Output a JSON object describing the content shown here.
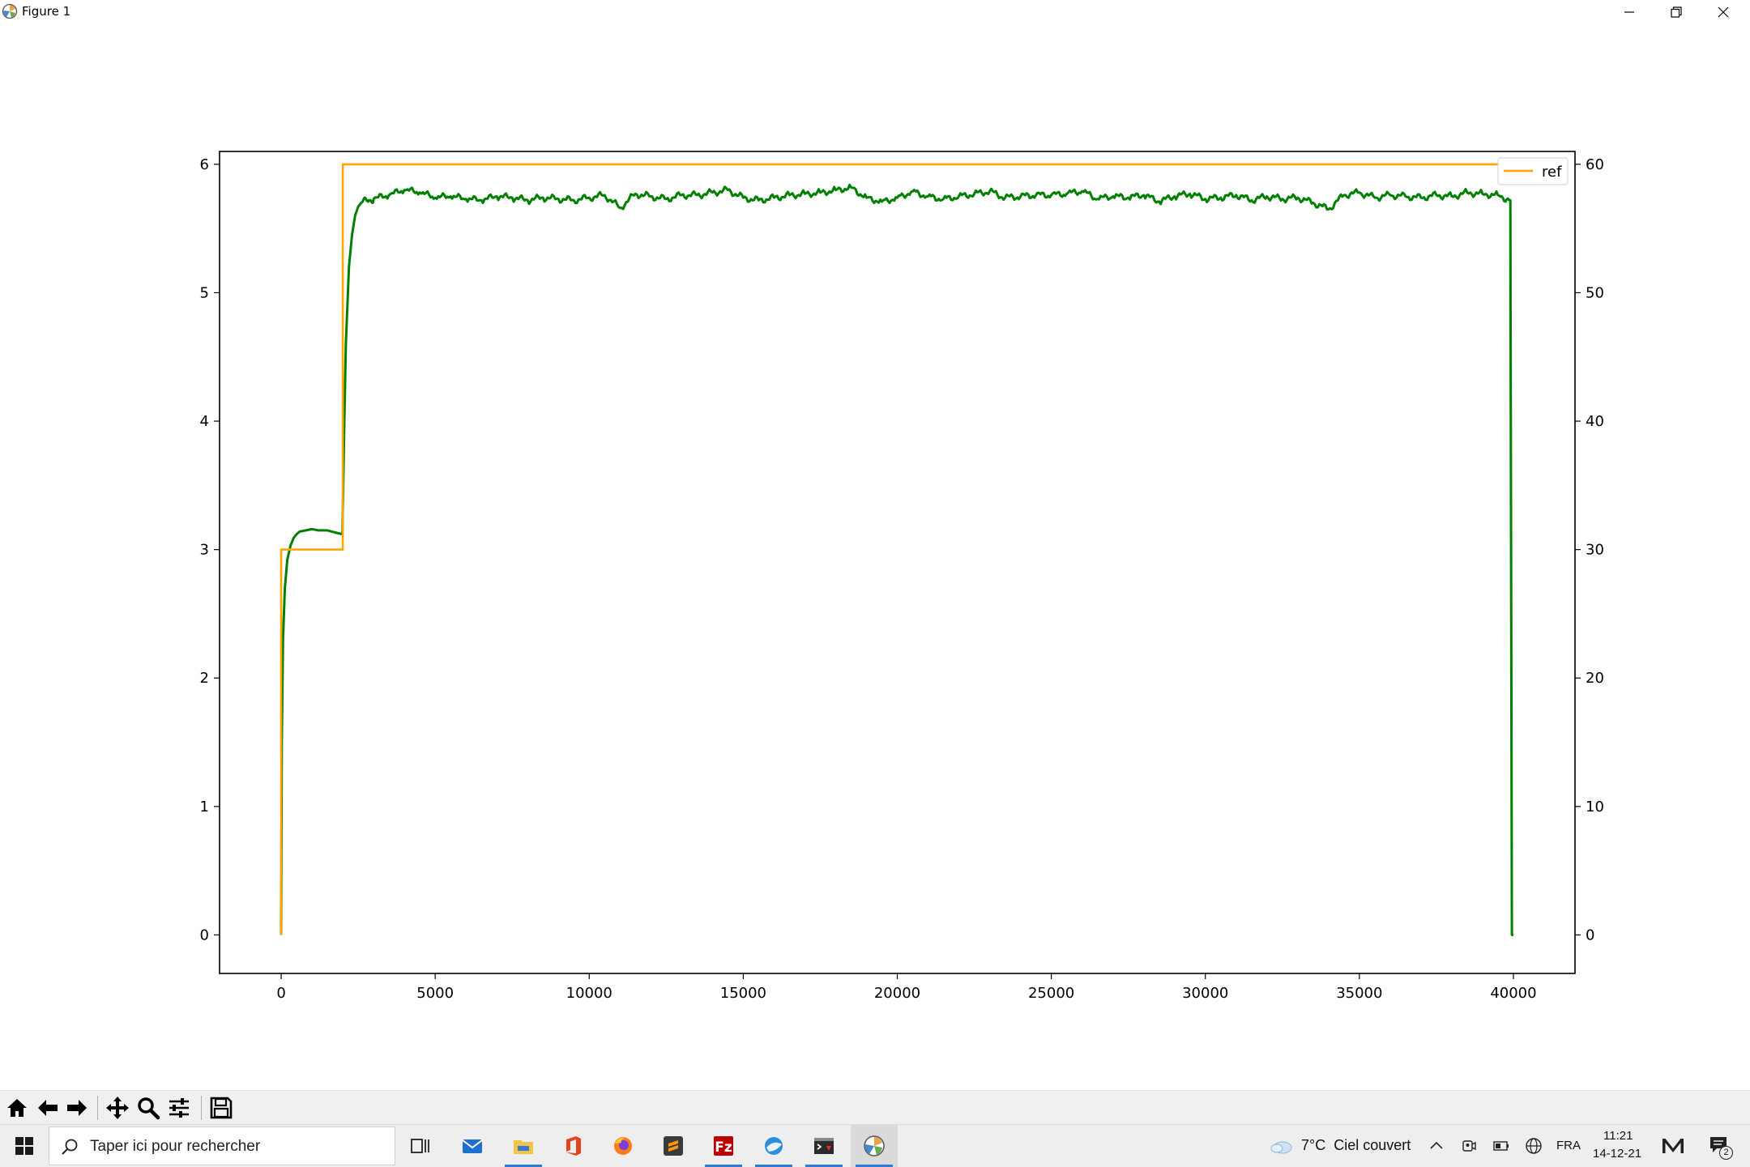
{
  "window": {
    "title": "Figure 1",
    "controls": [
      "minimize",
      "restore",
      "close"
    ]
  },
  "chart_data": {
    "type": "line",
    "title": "",
    "xlabel": "",
    "ylabel": "",
    "xlim": [
      -2000,
      42000
    ],
    "ylim": [
      -0.3,
      6.1
    ],
    "y2lim": [
      -3,
      61
    ],
    "x_ticks": [
      0,
      5000,
      10000,
      15000,
      20000,
      25000,
      30000,
      35000,
      40000
    ],
    "y_ticks": [
      0,
      1,
      2,
      3,
      4,
      5,
      6
    ],
    "y2_ticks": [
      0,
      10,
      20,
      30,
      40,
      50,
      60
    ],
    "grid": false,
    "legend": {
      "position": "top-right",
      "entries": [
        "ref"
      ]
    },
    "series": [
      {
        "name": "ref",
        "axis": "y2",
        "color": "#ffa500",
        "x": [
          0,
          0,
          2000,
          2000,
          40000
        ],
        "y": [
          0,
          30,
          30,
          60,
          60
        ]
      },
      {
        "axis": "y",
        "color": "#008000",
        "x": [
          0,
          20,
          60,
          120,
          200,
          300,
          400,
          500,
          600,
          800,
          1000,
          1200,
          1500,
          1800,
          1990,
          2000,
          2050,
          2100,
          2200,
          2300,
          2400,
          2500,
          2600,
          2800,
          3000,
          3500,
          4000,
          4500,
          5000,
          5500,
          6000,
          6500,
          7000,
          7500,
          8000,
          8500,
          9000,
          9500,
          10000,
          10500,
          11000,
          11500,
          12000,
          12500,
          13000,
          13500,
          14000,
          14500,
          15000,
          15500,
          16000,
          16500,
          17000,
          17500,
          18000,
          18500,
          19000,
          19500,
          20000,
          20500,
          21000,
          21500,
          22000,
          22500,
          23000,
          23500,
          24000,
          24500,
          25000,
          25500,
          26000,
          26500,
          27000,
          27500,
          28000,
          28500,
          29000,
          29500,
          30000,
          30500,
          31000,
          31500,
          32000,
          32500,
          33000,
          33500,
          34000,
          34500,
          35000,
          35500,
          36000,
          36500,
          37000,
          37500,
          38000,
          38500,
          39000,
          39500,
          39900,
          39950,
          40000
        ],
        "y": [
          0,
          1.5,
          2.3,
          2.7,
          2.92,
          3.03,
          3.09,
          3.12,
          3.14,
          3.15,
          3.16,
          3.15,
          3.15,
          3.13,
          3.12,
          3.3,
          4.0,
          4.6,
          5.2,
          5.45,
          5.6,
          5.67,
          5.7,
          5.72,
          5.73,
          5.76,
          5.8,
          5.78,
          5.74,
          5.75,
          5.73,
          5.72,
          5.75,
          5.74,
          5.72,
          5.74,
          5.73,
          5.72,
          5.74,
          5.76,
          5.66,
          5.77,
          5.75,
          5.73,
          5.76,
          5.76,
          5.78,
          5.8,
          5.74,
          5.72,
          5.74,
          5.76,
          5.77,
          5.78,
          5.8,
          5.82,
          5.74,
          5.71,
          5.74,
          5.79,
          5.75,
          5.73,
          5.75,
          5.77,
          5.79,
          5.74,
          5.75,
          5.76,
          5.76,
          5.77,
          5.79,
          5.73,
          5.75,
          5.74,
          5.76,
          5.71,
          5.75,
          5.77,
          5.73,
          5.74,
          5.76,
          5.72,
          5.75,
          5.73,
          5.74,
          5.7,
          5.65,
          5.76,
          5.78,
          5.74,
          5.76,
          5.75,
          5.74,
          5.76,
          5.75,
          5.78,
          5.77,
          5.76,
          5.72,
          0.0,
          0.0
        ]
      }
    ]
  },
  "toolbar": {
    "buttons": [
      "home-icon",
      "back-arrow-icon",
      "forward-arrow-icon",
      "pan-icon",
      "zoom-icon",
      "configure-icon",
      "save-icon"
    ]
  },
  "taskbar": {
    "search_placeholder": "Taper ici pour rechercher",
    "apps": [
      "task-view-icon",
      "mail-icon",
      "file-explorer-icon",
      "office-icon",
      "firefox-icon",
      "sublime-text-icon",
      "filezilla-icon",
      "browser-icon",
      "terminal-icon",
      "matplotlib-icon"
    ],
    "weather": "7°C  Ciel couvert",
    "language": "FRA",
    "time": "11:21",
    "date": "14-12-21",
    "notification_count": "2"
  }
}
